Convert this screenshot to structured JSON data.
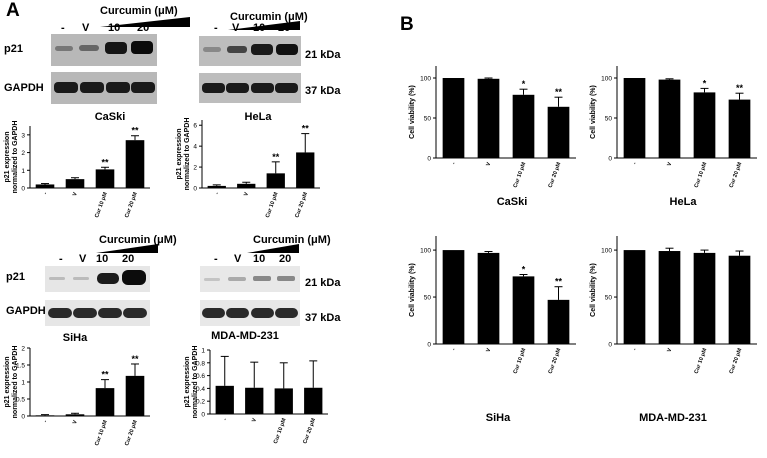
{
  "panels": {
    "A": {
      "letter": "A"
    },
    "B": {
      "letter": "B"
    }
  },
  "labels": {
    "p21": "p21",
    "gapdh": "GAPDH",
    "kda21": "21 kDa",
    "kda37": "37 kDa",
    "curcumin": "Curcumin (μM)",
    "lane_minus": "-",
    "lane_v": "V",
    "lane_10": "10",
    "lane_20": "20",
    "ylabel_expr_1": "p21 expression",
    "ylabel_expr_2": "normalized to GAPDH",
    "ylabel_viability": "Cell viability (%)"
  },
  "cell_lines": {
    "caski": "CaSki",
    "hela": "HeLa",
    "siha": "SiHa",
    "mda": "MDA-MD-231"
  },
  "chart_data": [
    {
      "id": "A-caski",
      "type": "bar",
      "categories": [
        "-",
        "V",
        "Cur 10 μM",
        "Cur 20 μM"
      ],
      "values": [
        0.2,
        0.5,
        1.05,
        2.7
      ],
      "errors": [
        0.05,
        0.08,
        0.12,
        0.25
      ],
      "annotations": [
        "",
        "",
        "**",
        "**"
      ],
      "yticks": [
        0,
        1,
        2,
        3
      ],
      "ylim": [
        0,
        3.5
      ]
    },
    {
      "id": "A-hela",
      "type": "bar",
      "categories": [
        "-",
        "V",
        "Cur 10 μM",
        "Cur 20 μM"
      ],
      "values": [
        0.2,
        0.4,
        1.4,
        3.4
      ],
      "errors": [
        0.1,
        0.15,
        1.1,
        1.8
      ],
      "annotations": [
        "",
        "",
        "**",
        "**"
      ],
      "yticks": [
        0,
        2,
        4,
        6
      ],
      "ylim": [
        0,
        6.5
      ]
    },
    {
      "id": "A-siha",
      "type": "bar",
      "categories": [
        "-",
        "V",
        "Cur 10 μM",
        "Cur 20 μM"
      ],
      "values": [
        0.02,
        0.05,
        0.82,
        1.18
      ],
      "errors": [
        0.02,
        0.03,
        0.25,
        0.35
      ],
      "annotations": [
        "",
        "",
        "**",
        "**"
      ],
      "yticks": [
        0,
        0.5,
        1,
        1.5,
        2
      ],
      "ylim": [
        0,
        2
      ]
    },
    {
      "id": "A-mda",
      "type": "bar",
      "categories": [
        "-",
        "V",
        "Cur 10 μM",
        "Cur 20 μM"
      ],
      "values": [
        0.44,
        0.41,
        0.4,
        0.41
      ],
      "errors": [
        0.46,
        0.4,
        0.4,
        0.42
      ],
      "annotations": [
        "",
        "",
        "",
        ""
      ],
      "yticks": [
        0,
        0.2,
        0.4,
        0.6,
        0.8,
        1
      ],
      "ylim": [
        0,
        1
      ]
    },
    {
      "id": "B-caski",
      "type": "bar",
      "categories": [
        "-",
        "V",
        "Cur 10 μM",
        "Cur 20 μM"
      ],
      "values": [
        100,
        99,
        79,
        64
      ],
      "errors": [
        0,
        1,
        7,
        12
      ],
      "annotations": [
        "",
        "",
        "*",
        "**"
      ],
      "yticks": [
        0,
        50,
        100
      ],
      "ylim": [
        0,
        115
      ]
    },
    {
      "id": "B-hela",
      "type": "bar",
      "categories": [
        "-",
        "V",
        "Cur 10 μM",
        "Cur 20 μM"
      ],
      "values": [
        100,
        98,
        82,
        73
      ],
      "errors": [
        0,
        1,
        5,
        8
      ],
      "annotations": [
        "",
        "",
        "*",
        "**"
      ],
      "yticks": [
        0,
        50,
        100
      ],
      "ylim": [
        0,
        115
      ]
    },
    {
      "id": "B-siha",
      "type": "bar",
      "categories": [
        "-",
        "V",
        "Cur 10 μM",
        "Cur 20 μM"
      ],
      "values": [
        100,
        97,
        72,
        47
      ],
      "errors": [
        0,
        1.5,
        2,
        14
      ],
      "annotations": [
        "",
        "",
        "*",
        "**"
      ],
      "yticks": [
        0,
        50,
        100
      ],
      "ylim": [
        0,
        115
      ]
    },
    {
      "id": "B-mda",
      "type": "bar",
      "categories": [
        "-",
        "V",
        "Cur 10 μM",
        "Cur 20 μM"
      ],
      "values": [
        100,
        99,
        97,
        94
      ],
      "errors": [
        0,
        3,
        3,
        5
      ],
      "annotations": [
        "",
        "",
        "",
        ""
      ],
      "yticks": [
        0,
        50,
        100
      ],
      "ylim": [
        0,
        115
      ]
    }
  ]
}
